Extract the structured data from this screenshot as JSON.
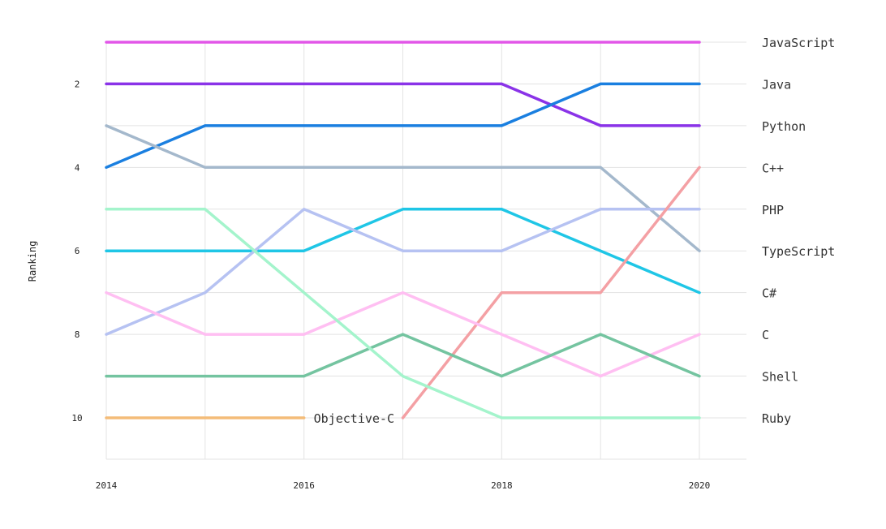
{
  "chart_data": {
    "type": "line",
    "subtype": "bump",
    "ylabel": "Ranking",
    "x": [
      2014,
      2015,
      2016,
      2017,
      2018,
      2019,
      2020
    ],
    "x_tick_labels": [
      "2014",
      "2016",
      "2018",
      "2020"
    ],
    "y_tick_labels": [
      "2",
      "4",
      "6",
      "8",
      "10"
    ],
    "ylim": [
      1,
      10
    ],
    "y_inverted": true,
    "grid": true,
    "series": [
      {
        "name": "JavaScript",
        "color": "#e256e8",
        "values": [
          1,
          1,
          1,
          1,
          1,
          1,
          1
        ]
      },
      {
        "name": "Python",
        "color": "#8a33e8",
        "values": [
          2,
          2,
          2,
          2,
          2,
          3,
          3
        ]
      },
      {
        "name": "Java",
        "color": "#1a7fe0",
        "values": [
          4,
          3,
          3,
          3,
          3,
          2,
          2
        ]
      },
      {
        "name": "TypeScript",
        "color": "#a4b8cc",
        "values": [
          3,
          4,
          4,
          4,
          4,
          4,
          6
        ]
      },
      {
        "name": "C#",
        "color": "#1fc6e6",
        "values": [
          6,
          6,
          6,
          5,
          5,
          6,
          7
        ]
      },
      {
        "name": "PHP",
        "color": "#b6c2f2",
        "values": [
          8,
          7,
          5,
          6,
          6,
          5,
          5
        ]
      },
      {
        "name": "C++",
        "color": "#f4a0a4",
        "values": [
          null,
          null,
          null,
          10,
          7,
          7,
          4
        ]
      },
      {
        "name": "C",
        "color": "#ffbff2",
        "values": [
          7,
          8,
          8,
          7,
          8,
          9,
          8
        ]
      },
      {
        "name": "Shell",
        "color": "#74c4a0",
        "values": [
          9,
          9,
          9,
          8,
          9,
          8,
          9
        ]
      },
      {
        "name": "Ruby",
        "color": "#a4f4cc",
        "values": [
          5,
          5,
          7,
          9,
          10,
          10,
          10
        ]
      },
      {
        "name": "Objective-C",
        "color": "#f4bc78",
        "values": [
          10,
          10,
          10,
          null,
          null,
          null,
          null
        ]
      }
    ],
    "right_labels": [
      "JavaScript",
      "Python",
      "Java",
      "TypeScript",
      "C#",
      "PHP",
      "C++",
      "C",
      "Shell",
      "Ruby"
    ],
    "inline_label": "Objective-C"
  }
}
